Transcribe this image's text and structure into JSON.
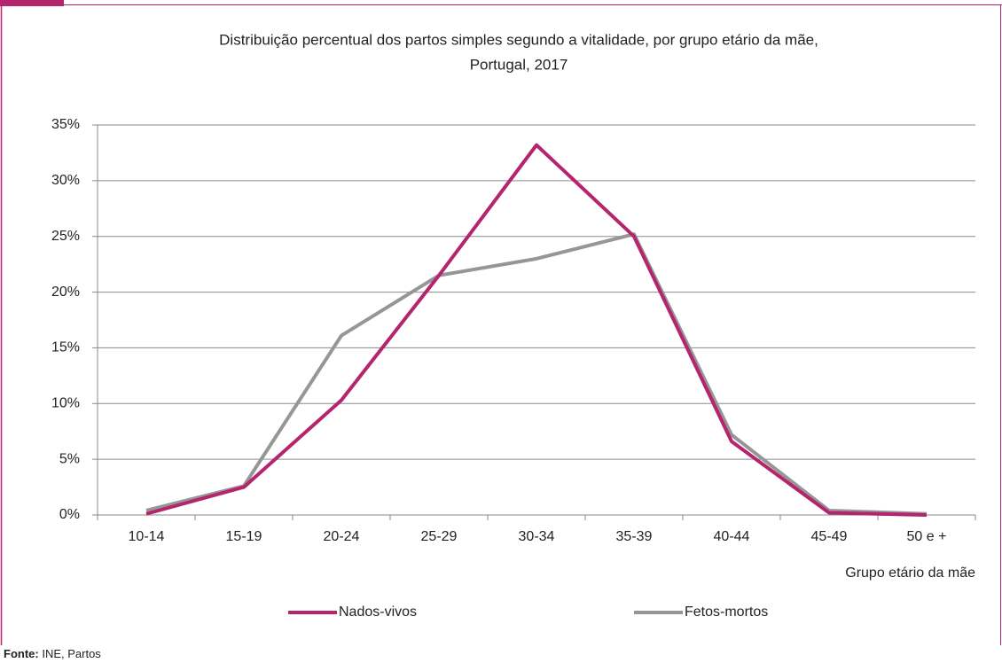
{
  "chart_data": {
    "type": "line",
    "title": [
      "Distribuição  percentual dos partos simples segundo a vitalidade, por grupo etário da mãe,",
      "Portugal, 2017"
    ],
    "x_label": "Grupo etário da mãe",
    "categories": [
      "10-14",
      "15-19",
      "20-24",
      "25-29",
      "30-34",
      "35-39",
      "40-44",
      "45-49",
      "50 e +"
    ],
    "series": [
      {
        "name": "Nados-vivos",
        "color": "#b5256e",
        "values": [
          0.1,
          2.5,
          10.3,
          21.5,
          33.2,
          25.0,
          6.6,
          0.2,
          0.0
        ]
      },
      {
        "name": "Fetos-mortos",
        "color": "#969696",
        "values": [
          0.4,
          2.6,
          16.1,
          21.5,
          23.0,
          25.2,
          7.2,
          0.4,
          0.1
        ]
      }
    ],
    "ylim": [
      0,
      35
    ],
    "yticks": [
      {
        "value": 0,
        "label": "0%"
      },
      {
        "value": 5,
        "label": "5%"
      },
      {
        "value": 10,
        "label": "10%"
      },
      {
        "value": 15,
        "label": "15%"
      },
      {
        "value": 20,
        "label": "20%"
      },
      {
        "value": 25,
        "label": "25%"
      },
      {
        "value": 30,
        "label": "30%"
      },
      {
        "value": 35,
        "label": "35%"
      }
    ],
    "grid": true,
    "legend": "bottom",
    "source": {
      "label": "Fonte:",
      "text": "INE, Partos"
    }
  }
}
